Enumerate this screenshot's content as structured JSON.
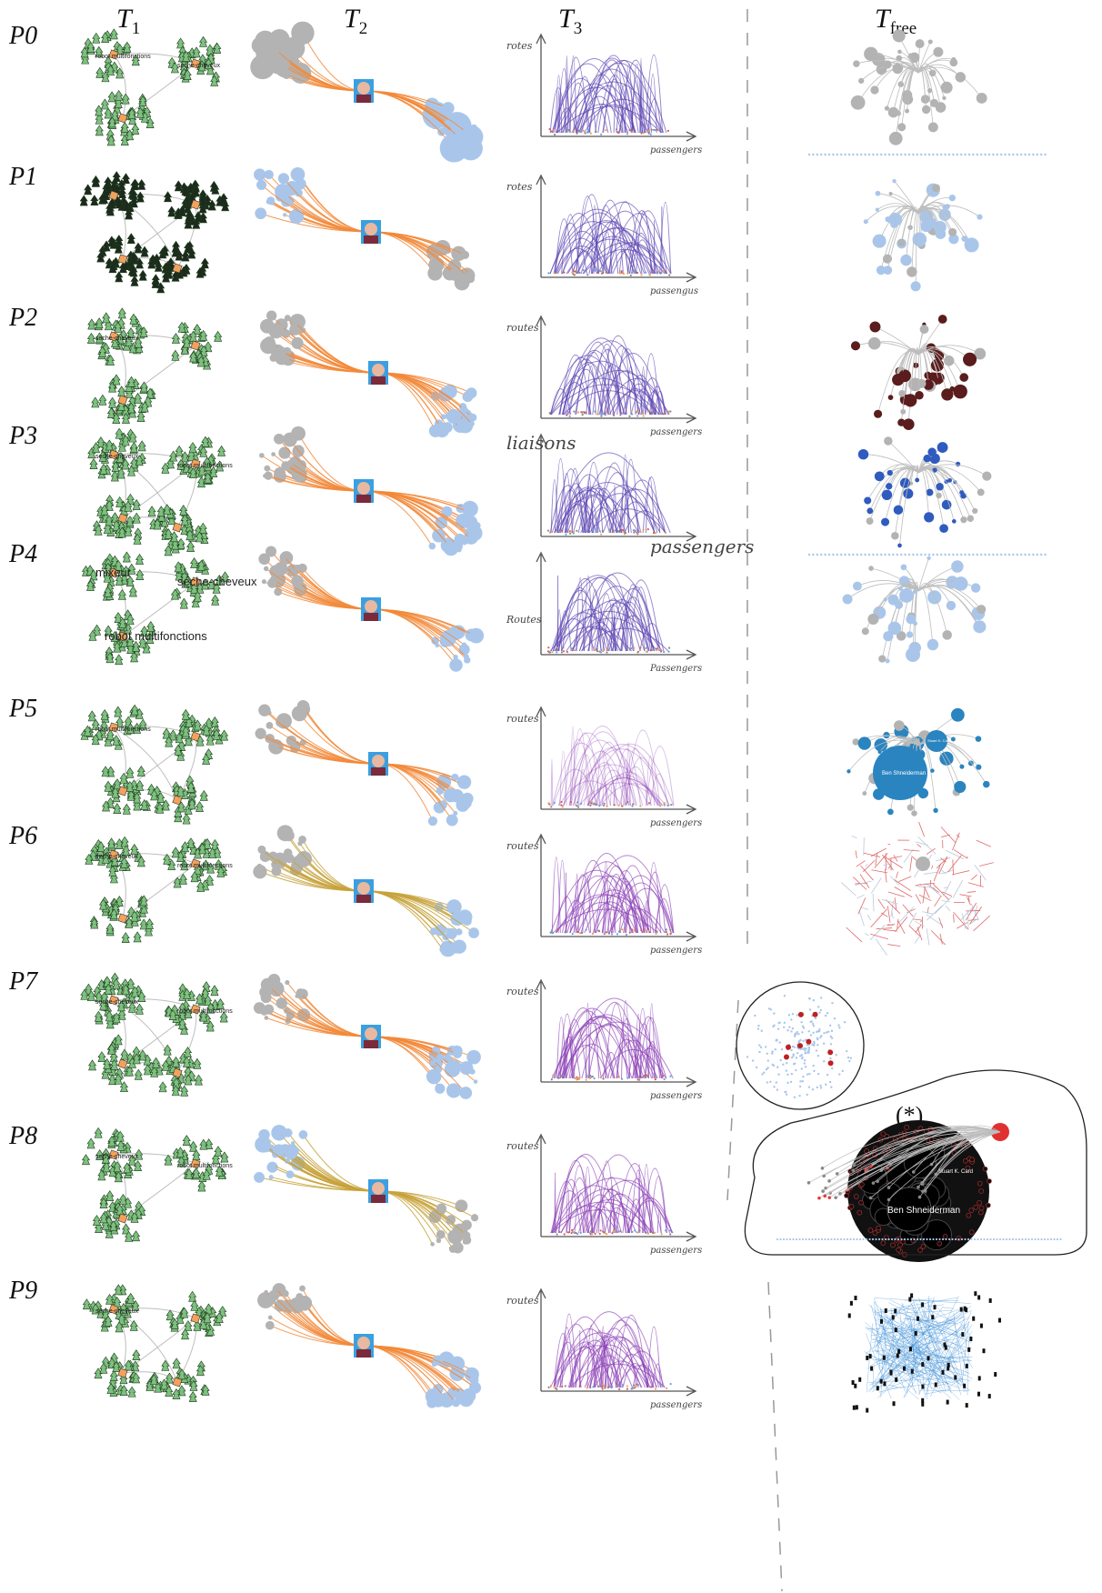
{
  "columns": [
    {
      "base": "T",
      "sub": "1"
    },
    {
      "base": "T",
      "sub": "2"
    },
    {
      "base": "T",
      "sub": "3"
    },
    {
      "base": "T",
      "sub": "free"
    }
  ],
  "rows": [
    {
      "label": "P0",
      "t1_labels": [
        "robot multifonctions",
        "seche-cheveux"
      ],
      "t3_ylabel": "rotes",
      "t3_xlabel": "passengers"
    },
    {
      "label": "P1",
      "t1_labels": [],
      "t3_ylabel": "rotes",
      "t3_xlabel": "passengus"
    },
    {
      "label": "P2",
      "t1_labels": [
        "seche-cheveux"
      ],
      "t3_ylabel": "routes",
      "t3_xlabel": "passengers"
    },
    {
      "label": "P3",
      "t1_labels": [
        "seche-cheveux",
        "robot multifonctions"
      ],
      "t3_ylabel": "liaisons",
      "t3_xlabel": "passengers"
    },
    {
      "label": "P4",
      "t1_labels": [
        "mixeur",
        "seche-cheveux",
        "robot multifonctions"
      ],
      "t3_ylabel": "Routes",
      "t3_xlabel": "Passengers"
    },
    {
      "label": "P5",
      "t1_labels": [
        "robot multifonctions"
      ],
      "t3_ylabel": "routes",
      "t3_xlabel": "passengers"
    },
    {
      "label": "P6",
      "t1_labels": [
        "seche-cheveux",
        "robot multifonctions"
      ],
      "t3_ylabel": "routes",
      "t3_xlabel": "passengers"
    },
    {
      "label": "P7",
      "t1_labels": [
        "seche-cheveux",
        "robot multifonctions"
      ],
      "t3_ylabel": "routes",
      "t3_xlabel": "passengers"
    },
    {
      "label": "P8",
      "t1_labels": [
        "seche-cheveux",
        "robot multifonctions"
      ],
      "t3_ylabel": "routes",
      "t3_xlabel": "passengers"
    },
    {
      "label": "P9",
      "t1_labels": [
        "seche-cheveux"
      ],
      "t3_ylabel": "routes",
      "t3_xlabel": "passengers"
    }
  ],
  "tfree": {
    "p4_labels": [],
    "p5_labels": [
      "Ben Shneiderman",
      "Stuart K. Card"
    ],
    "p8_labels": [
      "Ben Shneiderman",
      "Stuart K. Card"
    ],
    "asterisk": "(*)"
  },
  "colors": {
    "t1_fill": "#7ec07f",
    "t1_hub": "#f2a25a",
    "edge_gray": "#bdbdbd",
    "t2_edge": "#f28a3a",
    "t2_edge_olive": "#c7a23a",
    "node_blue": "#a9c6ea",
    "node_gray": "#b3b3b3",
    "arc_purple": "#5b43b0",
    "arc_violet": "#8b3fb5",
    "tfree_blue": "#2f5bbf",
    "tfree_teal": "#2a84c0",
    "tfree_red": "#e03030",
    "tfree_black": "#0a0a0a"
  },
  "icons": [
    "person-photo-icon"
  ]
}
